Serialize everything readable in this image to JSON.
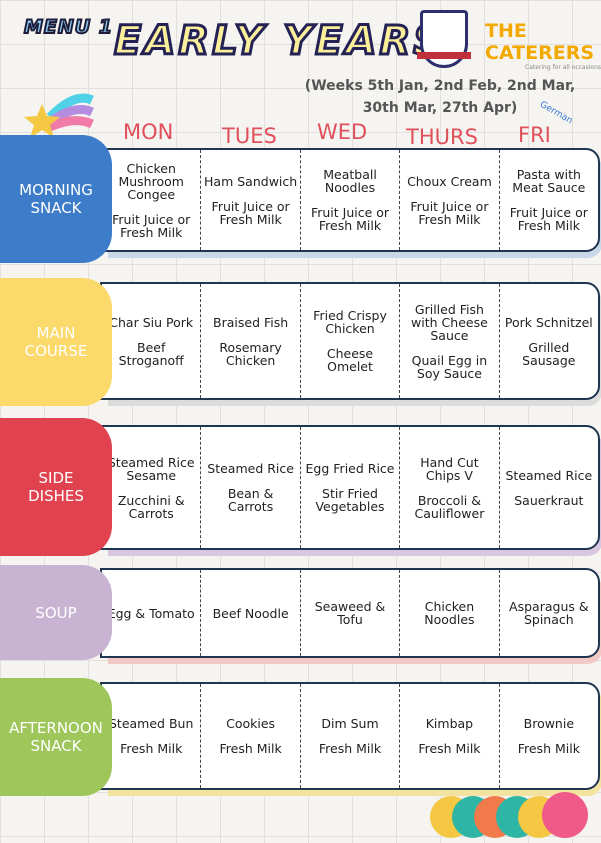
{
  "header": {
    "menu": "MENU 1",
    "title": "EARLY YEARS",
    "weeks_line1": "(Weeks 5th Jan, 2nd Feb, 2nd Mar,",
    "weeks_line2": "30th Mar, 27th Apr)",
    "caterer": "THE CATERERS",
    "caterer_tagline": "Catering for all occasions",
    "german": "German"
  },
  "days": [
    "MON",
    "TUES",
    "WED",
    "THURS",
    "FRI"
  ],
  "colors": {
    "morning": "#3d7cc9",
    "main": "#fbd96a",
    "side": "#e0434f",
    "soup": "#c8b3d3",
    "afternoon": "#9ec65a",
    "day_text": "#e0505b"
  },
  "rows": [
    {
      "label": "MORNING SNACK",
      "cells": [
        [
          "Chicken Mushroom Congee",
          "Fruit Juice or Fresh Milk"
        ],
        [
          "Ham Sandwich",
          "Fruit Juice or Fresh Milk"
        ],
        [
          "Meatball Noodles",
          "Fruit Juice or Fresh Milk"
        ],
        [
          "Choux Cream",
          "Fruit Juice or Fresh Milk"
        ],
        [
          "Pasta with Meat Sauce",
          "Fruit Juice or Fresh Milk"
        ]
      ]
    },
    {
      "label": "MAIN COURSE",
      "cells": [
        [
          "Char Siu Pork",
          "Beef Stroganoff"
        ],
        [
          "Braised Fish",
          "Rosemary Chicken"
        ],
        [
          "Fried Crispy Chicken",
          "Cheese Omelet"
        ],
        [
          "Grilled Fish with Cheese Sauce",
          "Quail Egg in Soy Sauce"
        ],
        [
          "Pork Schnitzel",
          "Grilled Sausage"
        ]
      ]
    },
    {
      "label": "SIDE DISHES",
      "cells": [
        [
          "Steamed Rice Sesame",
          "Zucchini & Carrots"
        ],
        [
          "Steamed Rice",
          "Bean & Carrots"
        ],
        [
          "Egg Fried Rice",
          "Stir Fried Vegetables"
        ],
        [
          "Hand Cut Chips V",
          "Broccoli & Cauliflower"
        ],
        [
          "Steamed Rice",
          "Sauerkraut"
        ]
      ]
    },
    {
      "label": "SOUP",
      "cells": [
        [
          "Egg & Tomato"
        ],
        [
          "Beef Noodle"
        ],
        [
          "Seaweed & Tofu"
        ],
        [
          "Chicken Noodles"
        ],
        [
          "Asparagus & Spinach"
        ]
      ]
    },
    {
      "label": "AFTERNOON SNACK",
      "cells": [
        [
          "Steamed Bun",
          "Fresh Milk"
        ],
        [
          "Cookies",
          "Fresh Milk"
        ],
        [
          "Dim Sum",
          "Fresh Milk"
        ],
        [
          "Kimbap",
          "Fresh Milk"
        ],
        [
          "Brownie",
          "Fresh Milk"
        ]
      ]
    }
  ]
}
